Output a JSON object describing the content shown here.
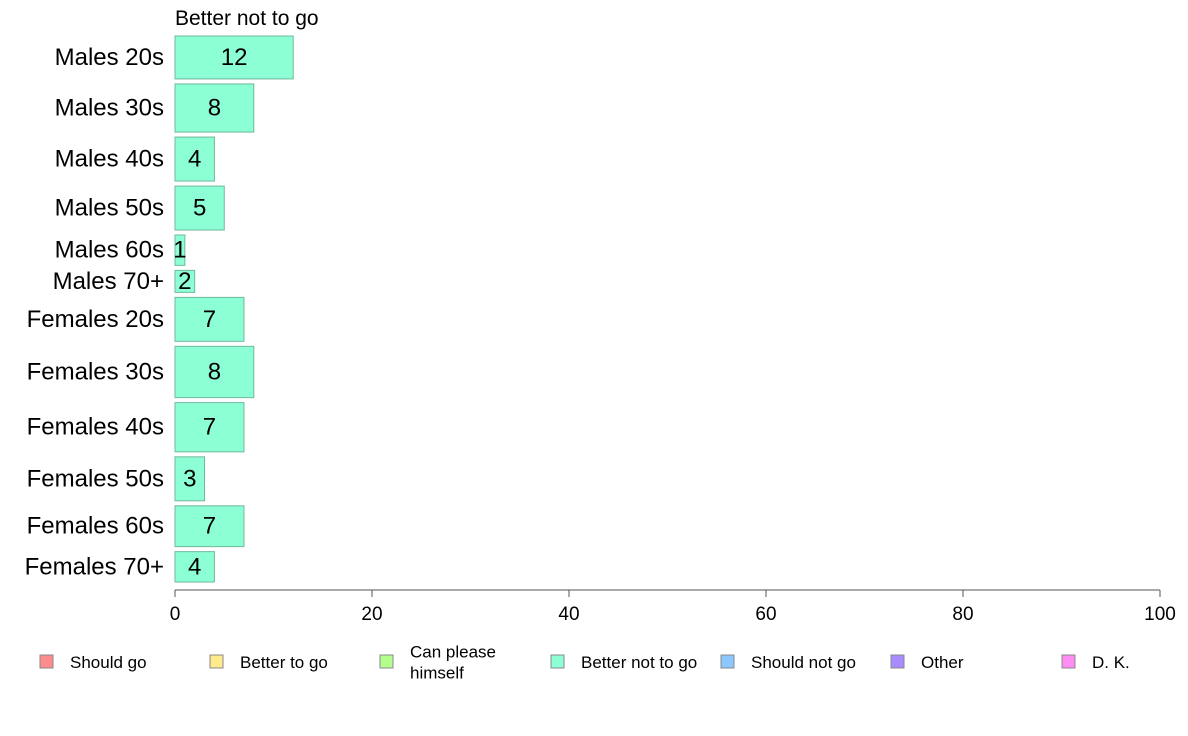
{
  "chart_data": {
    "type": "bar",
    "orientation": "horizontal",
    "panel_title": "Better not to go",
    "categories": [
      "Males 20s",
      "Males 30s",
      "Males 40s",
      "Males 50s",
      "Males 60s",
      "Males 70+",
      "Females 20s",
      "Females 30s",
      "Females 40s",
      "Females 50s",
      "Females 60s",
      "Females 70+"
    ],
    "values": [
      12,
      8,
      4,
      5,
      1,
      2,
      7,
      8,
      7,
      3,
      7,
      4
    ],
    "bar_color": "#8cffd4",
    "xlim": [
      0,
      100
    ],
    "xticks": [
      0,
      20,
      40,
      60,
      80,
      100
    ],
    "grid": false,
    "legend": {
      "position": "bottom",
      "entries": [
        {
          "label": "Should go",
          "color": "#ff8c8c"
        },
        {
          "label": "Better to go",
          "color": "#ffea8c"
        },
        {
          "label": "Can please himself",
          "lines": [
            "Can please",
            "himself"
          ],
          "color": "#b2ff8c"
        },
        {
          "label": "Better not to go",
          "color": "#8cffd4"
        },
        {
          "label": "Should not go",
          "color": "#8cc8ff"
        },
        {
          "label": "Other",
          "color": "#a88cff"
        },
        {
          "label": "D. K.",
          "color": "#ff8cf2"
        }
      ]
    }
  }
}
